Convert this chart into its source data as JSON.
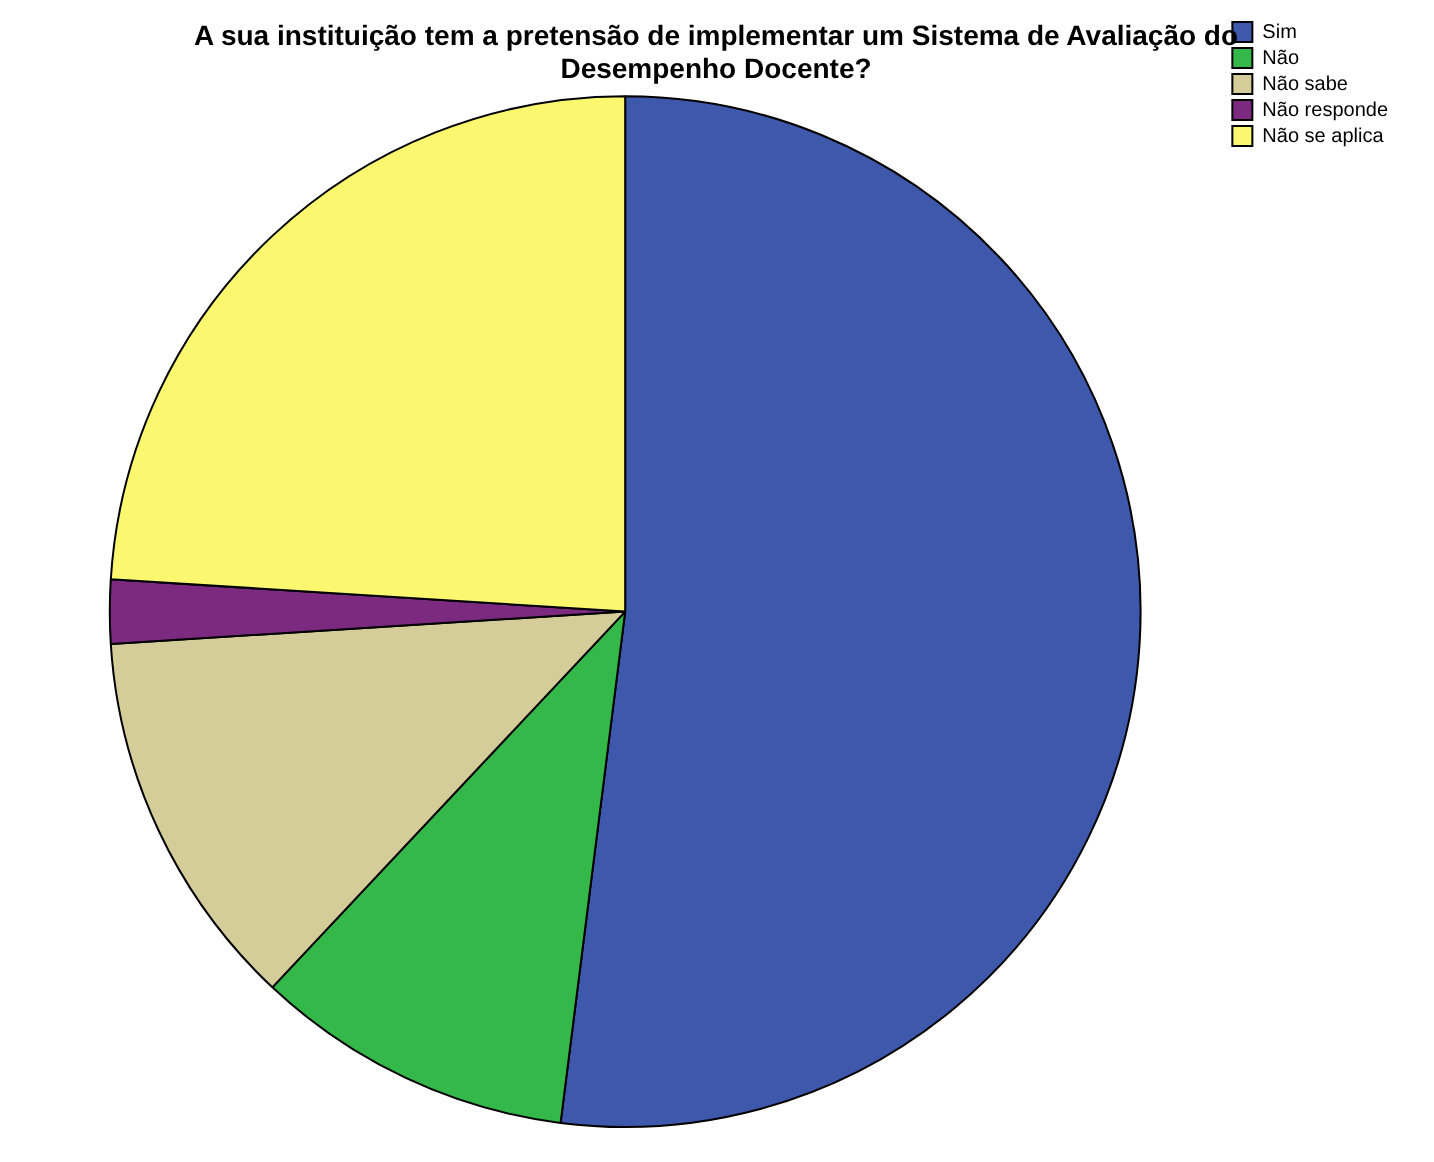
{
  "chart_data": {
    "type": "pie",
    "title": "A sua instituição tem a pretensão de implementar um Sistema de Avaliação do Desempenho Docente?",
    "categories": [
      "Sim",
      "Não",
      "Não sabe",
      "Não responde",
      "Não se aplica"
    ],
    "values": [
      52,
      10,
      12,
      2,
      24
    ],
    "colors": [
      "#3e58ac",
      "#35b84a",
      "#d4cd99",
      "#7b2a7f",
      "#fbf86f"
    ],
    "legend": "top right"
  }
}
